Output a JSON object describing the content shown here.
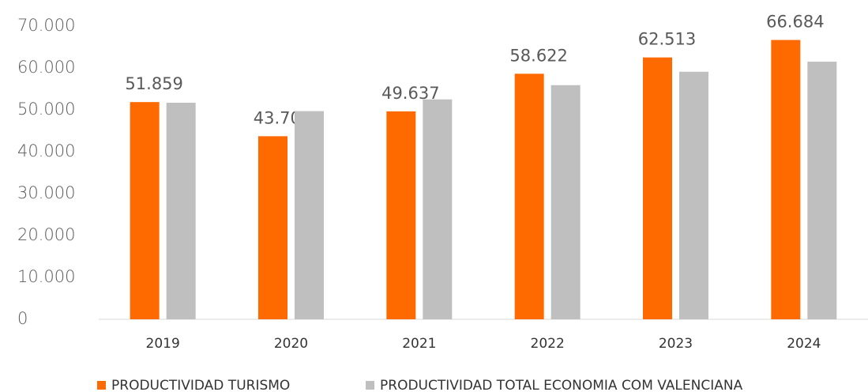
{
  "chart_data": {
    "type": "bar",
    "categories": [
      "2019",
      "2020",
      "2021",
      "2022",
      "2023",
      "2024"
    ],
    "series": [
      {
        "name": "PRODUCTIVIDAD TURISMO",
        "color": "#ff6a00",
        "values": [
          51859,
          43707,
          49637,
          58622,
          62513,
          66684
        ],
        "value_labels": [
          "51.859",
          "43.707",
          "49.637",
          "58.622",
          "62.513",
          "66.684"
        ]
      },
      {
        "name": "PRODUCTIVIDAD TOTAL ECONOMIA COM VALENCIANA",
        "color": "#bfbfbf",
        "values": [
          51700,
          49700,
          52500,
          55900,
          59100,
          61500
        ]
      }
    ],
    "ylim": [
      0,
      70000
    ],
    "yticks": [
      0,
      {
        "value": 10000,
        "label": "10.000"
      },
      {
        "value": 20000,
        "label": "20.000"
      },
      {
        "value": 30000,
        "label": "30.000"
      },
      {
        "value": 40000,
        "label": "40.000"
      },
      {
        "value": 50000,
        "label": "50.000"
      },
      {
        "value": 60000,
        "label": "60.000"
      },
      {
        "value": 70000,
        "label": "70.000"
      }
    ],
    "grid": false,
    "legend": "bottom"
  }
}
